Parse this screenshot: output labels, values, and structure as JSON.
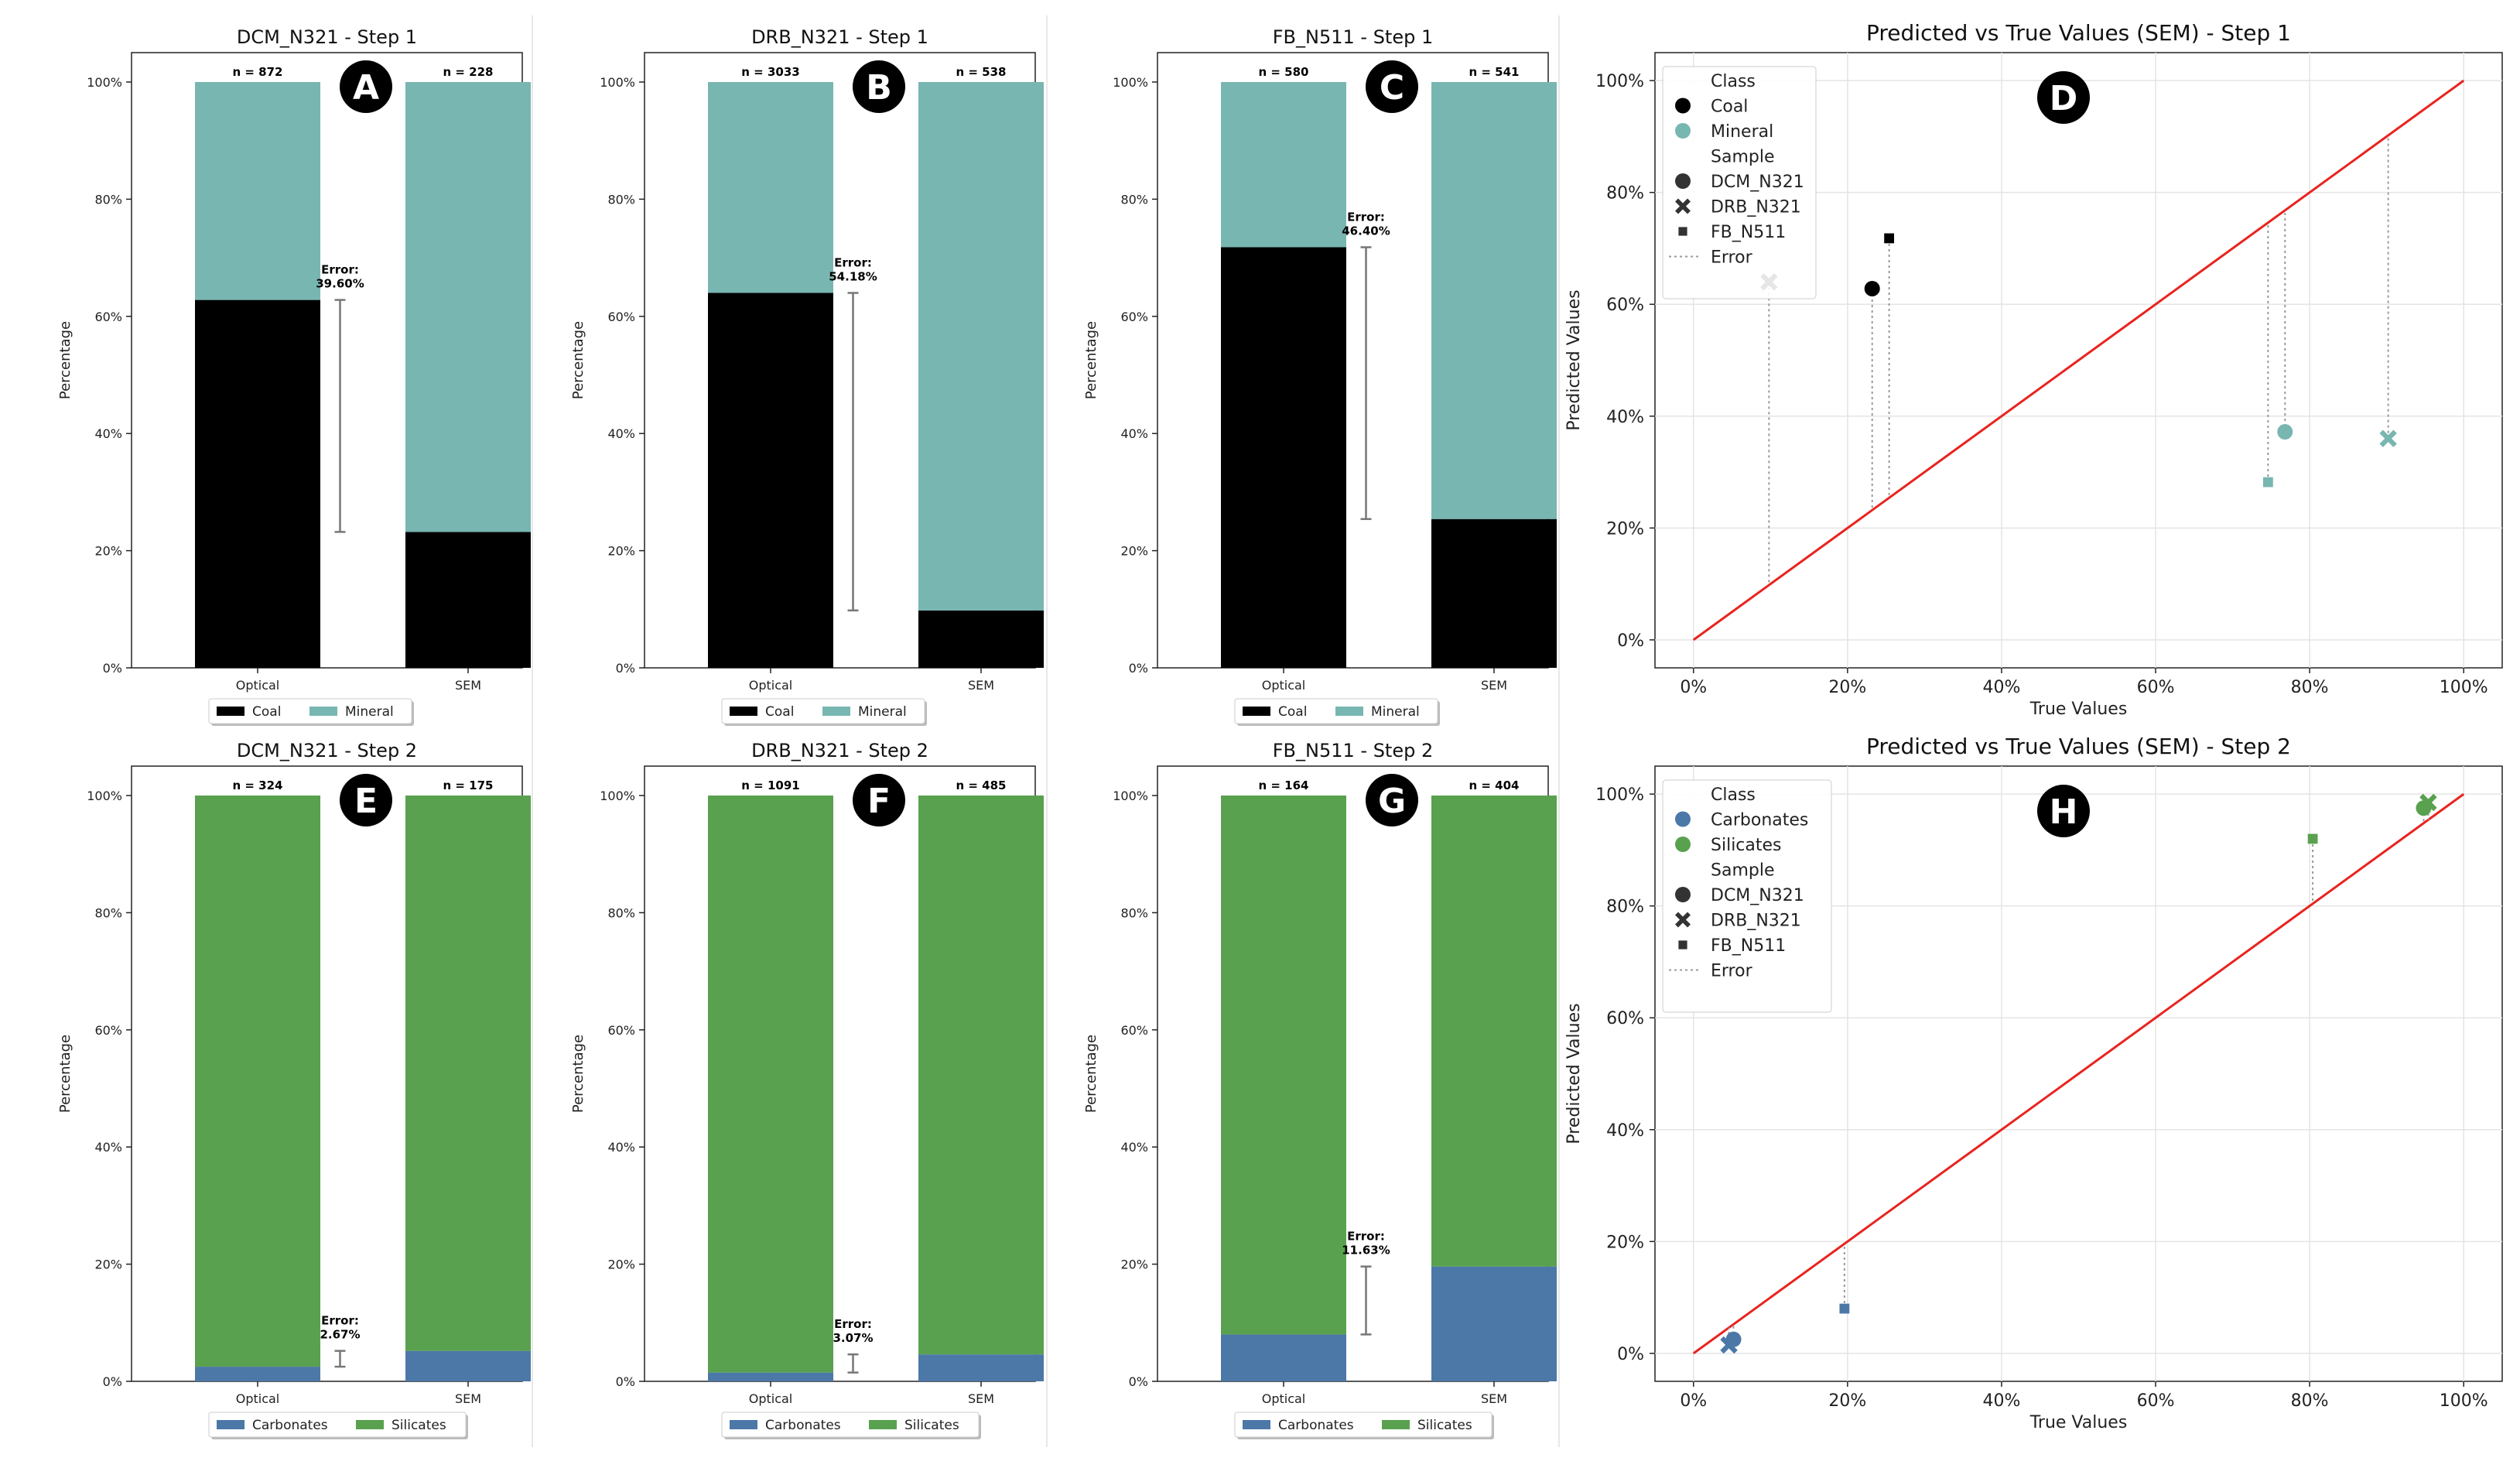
{
  "colors": {
    "coal": "#000000",
    "mineral": "#78b6b1",
    "carbonates": "#4c78a8",
    "silicates": "#59a14f",
    "diag": "#e8241f",
    "err": "#777777"
  },
  "chart_data": [
    {
      "type": "bar",
      "id": "A",
      "badge": "A",
      "title": "DCM_N321 - Step 1",
      "ylabel": "Percentage",
      "ylim": [
        0,
        100
      ],
      "yticks": [
        "0%",
        "20%",
        "40%",
        "60%",
        "80%",
        "100%"
      ],
      "categories": [
        "Optical",
        "SEM"
      ],
      "n_labels": [
        "n = 872",
        "n = 228"
      ],
      "series": [
        {
          "name": "Coal",
          "color_key": "coal",
          "values": [
            62.8,
            23.2
          ]
        },
        {
          "name": "Mineral",
          "color_key": "mineral",
          "values": [
            37.2,
            76.8
          ]
        }
      ],
      "error": {
        "label_line1": "Error:",
        "label_line2": "39.60%",
        "from": 23.2,
        "to": 62.8
      },
      "legend": [
        "Coal",
        "Mineral"
      ]
    },
    {
      "type": "bar",
      "id": "B",
      "badge": "B",
      "title": "DRB_N321 - Step 1",
      "ylabel": "Percentage",
      "ylim": [
        0,
        100
      ],
      "yticks": [
        "0%",
        "20%",
        "40%",
        "60%",
        "80%",
        "100%"
      ],
      "categories": [
        "Optical",
        "SEM"
      ],
      "n_labels": [
        "n = 3033",
        "n = 538"
      ],
      "series": [
        {
          "name": "Coal",
          "color_key": "coal",
          "values": [
            64.0,
            9.8
          ]
        },
        {
          "name": "Mineral",
          "color_key": "mineral",
          "values": [
            36.0,
            90.2
          ]
        }
      ],
      "error": {
        "label_line1": "Error:",
        "label_line2": "54.18%",
        "from": 9.8,
        "to": 64.0
      },
      "legend": [
        "Coal",
        "Mineral"
      ]
    },
    {
      "type": "bar",
      "id": "C",
      "badge": "C",
      "title": "FB_N511 - Step 1",
      "ylabel": "Percentage",
      "ylim": [
        0,
        100
      ],
      "yticks": [
        "0%",
        "20%",
        "40%",
        "60%",
        "80%",
        "100%"
      ],
      "categories": [
        "Optical",
        "SEM"
      ],
      "n_labels": [
        "n = 580",
        "n = 541"
      ],
      "series": [
        {
          "name": "Coal",
          "color_key": "coal",
          "values": [
            71.8,
            25.4
          ]
        },
        {
          "name": "Mineral",
          "color_key": "mineral",
          "values": [
            28.2,
            74.6
          ]
        }
      ],
      "error": {
        "label_line1": "Error:",
        "label_line2": "46.40%",
        "from": 25.4,
        "to": 71.8
      },
      "legend": [
        "Coal",
        "Mineral"
      ]
    },
    {
      "type": "bar",
      "id": "E",
      "badge": "E",
      "title": "DCM_N321 - Step 2",
      "ylabel": "Percentage",
      "ylim": [
        0,
        100
      ],
      "yticks": [
        "0%",
        "20%",
        "40%",
        "60%",
        "80%",
        "100%"
      ],
      "categories": [
        "Optical",
        "SEM"
      ],
      "n_labels": [
        "n = 324",
        "n = 175"
      ],
      "series": [
        {
          "name": "Carbonates",
          "color_key": "carbonates",
          "values": [
            2.5,
            5.2
          ]
        },
        {
          "name": "Silicates",
          "color_key": "silicates",
          "values": [
            97.5,
            94.8
          ]
        }
      ],
      "error": {
        "label_line1": "Error:",
        "label_line2": "2.67%",
        "from": 2.5,
        "to": 5.2
      },
      "legend": [
        "Carbonates",
        "Silicates"
      ]
    },
    {
      "type": "bar",
      "id": "F",
      "badge": "F",
      "title": "DRB_N321 - Step 2",
      "ylabel": "Percentage",
      "ylim": [
        0,
        100
      ],
      "yticks": [
        "0%",
        "20%",
        "40%",
        "60%",
        "80%",
        "100%"
      ],
      "categories": [
        "Optical",
        "SEM"
      ],
      "n_labels": [
        "n = 1091",
        "n = 485"
      ],
      "series": [
        {
          "name": "Carbonates",
          "color_key": "carbonates",
          "values": [
            1.5,
            4.6
          ]
        },
        {
          "name": "Silicates",
          "color_key": "silicates",
          "values": [
            98.5,
            95.4
          ]
        }
      ],
      "error": {
        "label_line1": "Error:",
        "label_line2": "3.07%",
        "from": 1.5,
        "to": 4.6
      },
      "legend": [
        "Carbonates",
        "Silicates"
      ]
    },
    {
      "type": "bar",
      "id": "G",
      "badge": "G",
      "title": "FB_N511 - Step 2",
      "ylabel": "Percentage",
      "ylim": [
        0,
        100
      ],
      "yticks": [
        "0%",
        "20%",
        "40%",
        "60%",
        "80%",
        "100%"
      ],
      "categories": [
        "Optical",
        "SEM"
      ],
      "n_labels": [
        "n = 164",
        "n = 404"
      ],
      "series": [
        {
          "name": "Carbonates",
          "color_key": "carbonates",
          "values": [
            8.0,
            19.6
          ]
        },
        {
          "name": "Silicates",
          "color_key": "silicates",
          "values": [
            92.0,
            80.4
          ]
        }
      ],
      "error": {
        "label_line1": "Error:",
        "label_line2": "11.63%",
        "from": 8.0,
        "to": 19.6
      },
      "legend": [
        "Carbonates",
        "Silicates"
      ]
    },
    {
      "type": "scatter",
      "id": "D",
      "badge": "D",
      "title": "Predicted vs True Values (SEM)  - Step 1",
      "xlabel": "True Values",
      "ylabel": "Predicted Values",
      "xlim": [
        -5,
        105
      ],
      "ylim": [
        -5,
        105
      ],
      "ticks": [
        0,
        20,
        40,
        60,
        80,
        100
      ],
      "tick_labels": [
        "0%",
        "20%",
        "40%",
        "60%",
        "80%",
        "100%"
      ],
      "diagonal": [
        [
          0,
          0
        ],
        [
          100,
          100
        ]
      ],
      "points": [
        {
          "class": "Coal",
          "sample": "DCM_N321",
          "x": 23.2,
          "y": 62.8
        },
        {
          "class": "Coal",
          "sample": "DRB_N321",
          "x": 9.8,
          "y": 64.0
        },
        {
          "class": "Coal",
          "sample": "FB_N511",
          "x": 25.4,
          "y": 71.8
        },
        {
          "class": "Mineral",
          "sample": "DCM_N321",
          "x": 76.8,
          "y": 37.2
        },
        {
          "class": "Mineral",
          "sample": "DRB_N321",
          "x": 90.2,
          "y": 36.0
        },
        {
          "class": "Mineral",
          "sample": "FB_N511",
          "x": 74.6,
          "y": 28.2
        }
      ],
      "legend": {
        "class_title": "Class",
        "classes": [
          {
            "name": "Coal",
            "color_key": "coal"
          },
          {
            "name": "Mineral",
            "color_key": "mineral"
          }
        ],
        "sample_title": "Sample",
        "samples": [
          {
            "name": "DCM_N321",
            "marker": "circle"
          },
          {
            "name": "DRB_N321",
            "marker": "x"
          },
          {
            "name": "FB_N511",
            "marker": "square"
          }
        ],
        "error_label": "Error"
      }
    },
    {
      "type": "scatter",
      "id": "H",
      "badge": "H",
      "title": "Predicted vs True Values (SEM)  - Step 2",
      "xlabel": "True Values",
      "ylabel": "Predicted Values",
      "xlim": [
        -5,
        105
      ],
      "ylim": [
        -5,
        105
      ],
      "ticks": [
        0,
        20,
        40,
        60,
        80,
        100
      ],
      "tick_labels": [
        "0%",
        "20%",
        "40%",
        "60%",
        "80%",
        "100%"
      ],
      "diagonal": [
        [
          0,
          0
        ],
        [
          100,
          100
        ]
      ],
      "points": [
        {
          "class": "Carbonates",
          "sample": "DCM_N321",
          "x": 5.2,
          "y": 2.5
        },
        {
          "class": "Carbonates",
          "sample": "DRB_N321",
          "x": 4.6,
          "y": 1.5
        },
        {
          "class": "Carbonates",
          "sample": "FB_N511",
          "x": 19.6,
          "y": 8.0
        },
        {
          "class": "Silicates",
          "sample": "DCM_N321",
          "x": 94.8,
          "y": 97.5
        },
        {
          "class": "Silicates",
          "sample": "DRB_N321",
          "x": 95.4,
          "y": 98.5
        },
        {
          "class": "Silicates",
          "sample": "FB_N511",
          "x": 80.4,
          "y": 92.0
        }
      ],
      "legend": {
        "class_title": "Class",
        "classes": [
          {
            "name": "Carbonates",
            "color_key": "carbonates"
          },
          {
            "name": "Silicates",
            "color_key": "silicates"
          }
        ],
        "sample_title": "Sample",
        "samples": [
          {
            "name": "DCM_N321",
            "marker": "circle"
          },
          {
            "name": "DRB_N321",
            "marker": "x"
          },
          {
            "name": "FB_N511",
            "marker": "square"
          }
        ],
        "error_label": "Error"
      }
    }
  ]
}
